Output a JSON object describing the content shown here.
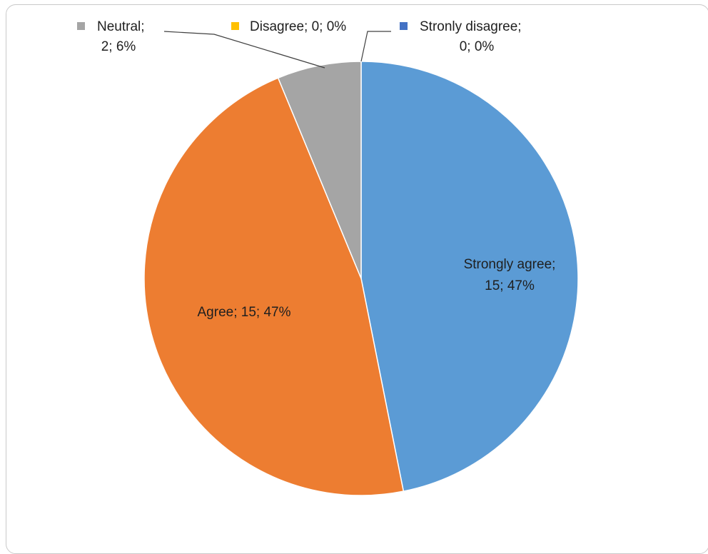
{
  "chart_data": {
    "type": "pie",
    "title": "",
    "colors": {
      "Strongly agree": "#5b9bd5",
      "Agree": "#ed7d31",
      "Neutral": "#a5a5a5",
      "Disagree": "#ffc000",
      "Stronly disagree": "#4472c4"
    },
    "slices": [
      {
        "label": "Strongly agree",
        "value": 15,
        "percent": "47%"
      },
      {
        "label": "Agree",
        "value": 15,
        "percent": "47%"
      },
      {
        "label": "Neutral",
        "value": 2,
        "percent": "6%"
      },
      {
        "label": "Disagree",
        "value": 0,
        "percent": "0%"
      },
      {
        "label": "Stronly disagree",
        "value": 0,
        "percent": "0%"
      }
    ]
  },
  "labels": {
    "strongly_agree_1": "Strongly agree;",
    "strongly_agree_2": "15; 47%",
    "agree": "Agree; 15; 47%",
    "neutral_1": "Neutral;",
    "neutral_2": "2; 6%",
    "disagree": "Disagree; 0; 0%",
    "stronly_disagree_1": "Stronly disagree;",
    "stronly_disagree_2": "0; 0%"
  }
}
